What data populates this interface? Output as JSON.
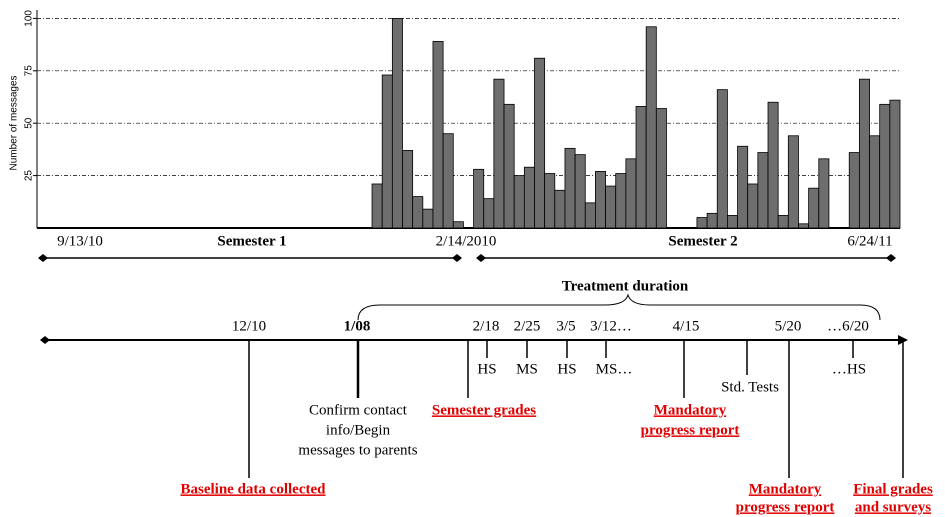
{
  "chart_data": {
    "type": "bar",
    "ylabel": "Number of messages",
    "categories": [
      null,
      null,
      null,
      null,
      null,
      null,
      null,
      null,
      null,
      null,
      null,
      null,
      null,
      null,
      null,
      null,
      null,
      null,
      null,
      null,
      null,
      null,
      null,
      null,
      null,
      null,
      null,
      null,
      null,
      null,
      null,
      null,
      null,
      null,
      null,
      null,
      null,
      null,
      null,
      null,
      null,
      null,
      null,
      null,
      null,
      null,
      null,
      null,
      null,
      null,
      null,
      null,
      null,
      null,
      null,
      null,
      null,
      null,
      null,
      null,
      null,
      null,
      null,
      null,
      null,
      null,
      null,
      null,
      null,
      null,
      null,
      null,
      null,
      null,
      null,
      null,
      null,
      null,
      null,
      null,
      null,
      null,
      null,
      null,
      null
    ],
    "values": [
      0,
      0,
      0,
      0,
      0,
      0,
      0,
      0,
      0,
      0,
      0,
      0,
      0,
      0,
      0,
      0,
      0,
      0,
      0,
      0,
      0,
      0,
      0,
      0,
      0,
      0,
      0,
      0,
      0,
      0,
      0,
      0,
      0,
      21,
      73,
      100,
      37,
      15,
      9,
      89,
      45,
      3,
      0,
      28,
      14,
      71,
      59,
      25,
      29,
      81,
      26,
      18,
      38,
      35,
      12,
      27,
      20,
      26,
      33,
      58,
      96,
      57,
      0,
      0,
      0,
      5,
      7,
      66,
      6,
      39,
      21,
      36,
      60,
      6,
      44,
      2,
      19,
      33,
      0,
      0,
      36,
      71,
      44,
      59,
      61
    ],
    "color": "#6e6e6e",
    "ylim": [
      0,
      104
    ],
    "yticks": [
      25,
      50,
      75,
      100
    ],
    "grid": true,
    "x_annotations": {
      "start": "9/13/10",
      "semester1": "Semester 1",
      "mid": "2/14/2010",
      "semester2": "Semester 2",
      "end": "6/24/11"
    }
  },
  "timeline": {
    "title": "Treatment duration",
    "dates": [
      "12/10",
      "1/08",
      "2/18",
      "2/25",
      "3/5",
      "3/12…",
      "4/15",
      "5/20",
      "…6/20"
    ],
    "tick_labels": [
      "HS",
      "MS",
      "HS",
      "MS…",
      "Std. Tests",
      "…HS"
    ],
    "contact": [
      "Confirm contact",
      "info/Begin",
      "messages to parents"
    ],
    "semester_grades": "Semester grades",
    "progress_report_1": [
      "Mandatory",
      "progress report"
    ],
    "baseline": "Baseline data collected",
    "progress_report_2": [
      "Mandatory",
      "progress report"
    ],
    "final": [
      "Final grades",
      "and surveys"
    ]
  }
}
